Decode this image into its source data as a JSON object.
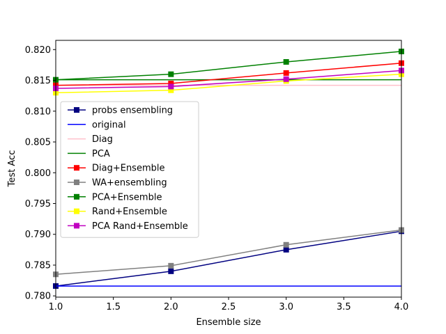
{
  "chart_data": {
    "type": "line",
    "title": "",
    "xlabel": "Ensemble size",
    "ylabel": "Test Acc",
    "xlim": [
      1.0,
      4.0
    ],
    "ylim": [
      0.7798,
      0.8215
    ],
    "x_ticks": [
      "1.0",
      "1.5",
      "2.0",
      "2.5",
      "3.0",
      "3.5",
      "4.0"
    ],
    "x_tick_values": [
      1.0,
      1.5,
      2.0,
      2.5,
      3.0,
      3.5,
      4.0
    ],
    "y_ticks": [
      "0.780",
      "0.785",
      "0.790",
      "0.795",
      "0.800",
      "0.805",
      "0.810",
      "0.815",
      "0.820"
    ],
    "y_tick_values": [
      0.78,
      0.785,
      0.79,
      0.795,
      0.8,
      0.805,
      0.81,
      0.815,
      0.82
    ],
    "grid": false,
    "legend_position": "center-left",
    "x": [
      1,
      2,
      3,
      4
    ],
    "series": [
      {
        "name": "probs ensembling",
        "color": "#000080",
        "marker": "square",
        "values": [
          0.7816,
          0.784,
          0.7875,
          0.7905
        ]
      },
      {
        "name": "original",
        "color": "#0000ff",
        "marker": "none",
        "values": [
          0.7816,
          0.7816,
          0.7816,
          0.7816
        ]
      },
      {
        "name": "Diag",
        "color": "#ffc0cb",
        "marker": "none",
        "values": [
          0.8142,
          0.8142,
          0.8142,
          0.8142
        ]
      },
      {
        "name": "PCA",
        "color": "#008000",
        "marker": "none",
        "values": [
          0.8151,
          0.8151,
          0.8151,
          0.8151
        ]
      },
      {
        "name": "Diag+Ensemble",
        "color": "#ff0000",
        "marker": "square",
        "values": [
          0.8142,
          0.8145,
          0.8162,
          0.8178
        ]
      },
      {
        "name": "WA+ensembling",
        "color": "#808080",
        "marker": "square",
        "values": [
          0.7835,
          0.7849,
          0.7883,
          0.7907
        ]
      },
      {
        "name": "PCA+Ensemble",
        "color": "#008000",
        "marker": "square",
        "values": [
          0.8151,
          0.816,
          0.818,
          0.8197
        ]
      },
      {
        "name": "Rand+Ensemble",
        "color": "#ffff00",
        "marker": "square",
        "values": [
          0.813,
          0.8134,
          0.8149,
          0.816
        ]
      },
      {
        "name": "PCA Rand+Ensemble",
        "color": "#c000c0",
        "marker": "square",
        "values": [
          0.8137,
          0.814,
          0.8152,
          0.8166
        ]
      }
    ]
  }
}
